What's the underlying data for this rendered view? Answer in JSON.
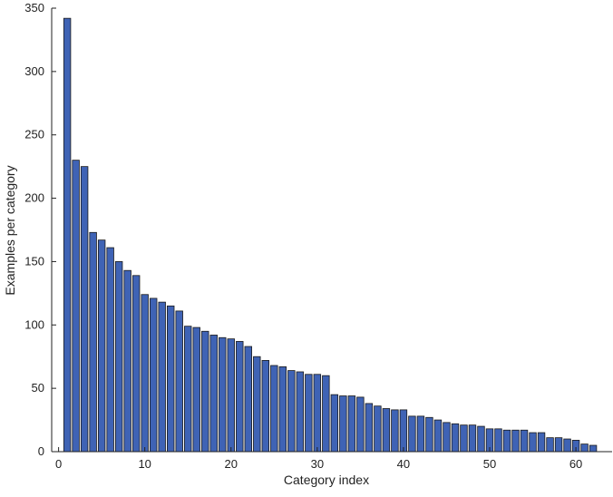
{
  "chart_data": {
    "type": "bar",
    "xlabel": "Category index",
    "ylabel": "Examples per category",
    "x": [
      1,
      2,
      3,
      4,
      5,
      6,
      7,
      8,
      9,
      10,
      11,
      12,
      13,
      14,
      15,
      16,
      17,
      18,
      19,
      20,
      21,
      22,
      23,
      24,
      25,
      26,
      27,
      28,
      29,
      30,
      31,
      32,
      33,
      34,
      35,
      36,
      37,
      38,
      39,
      40,
      41,
      42,
      43,
      44,
      45,
      46,
      47,
      48,
      49,
      50,
      51,
      52,
      53,
      54,
      55,
      56,
      57,
      58,
      59,
      60,
      61,
      62
    ],
    "values": [
      342,
      230,
      225,
      173,
      167,
      161,
      150,
      143,
      139,
      124,
      121,
      118,
      115,
      111,
      99,
      98,
      95,
      92,
      90,
      89,
      87,
      83,
      75,
      72,
      68,
      67,
      64,
      63,
      61,
      61,
      60,
      45,
      44,
      44,
      43,
      38,
      36,
      34,
      33,
      33,
      28,
      28,
      27,
      25,
      23,
      22,
      21,
      21,
      20,
      18,
      18,
      17,
      17,
      17,
      15,
      15,
      11,
      11,
      10,
      9,
      6,
      5
    ],
    "color": "#3f63b5",
    "xlim": [
      -0.8,
      64.2
    ],
    "xticks": [
      0,
      10,
      20,
      30,
      40,
      50,
      60
    ],
    "ylim": [
      0,
      350
    ],
    "yticks": [
      0,
      50,
      100,
      150,
      200,
      250,
      300,
      350
    ]
  }
}
